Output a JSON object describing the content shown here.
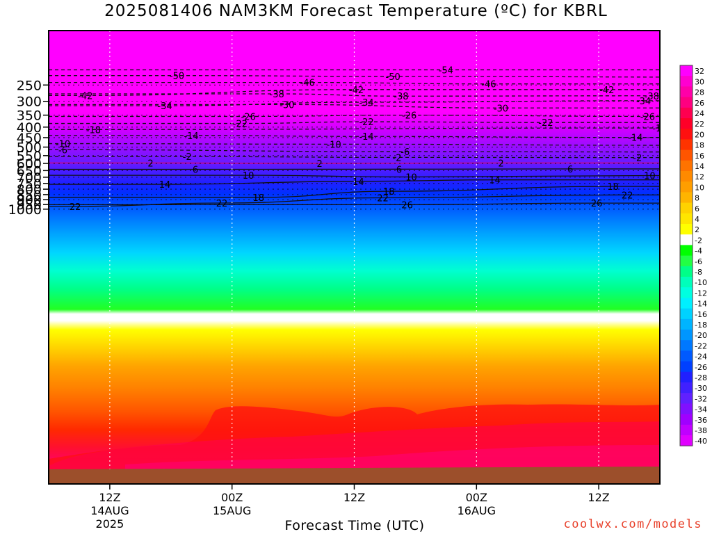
{
  "title": "2025081406 NAM3KM Forecast Temperature (ºC) for KBRL",
  "credit": "coolwx.com/models",
  "chart_data": {
    "type": "heatmap",
    "title": "2025081406 NAM3KM Forecast Temperature (ºC) for KBRL",
    "xlabel": "Forecast Time (UTC)",
    "ylabel": "",
    "x_range_hours": [
      6,
      90
    ],
    "x_ticks": [
      {
        "hour": 12,
        "lines": [
          "12Z",
          "14AUG",
          "2025"
        ]
      },
      {
        "hour": 24,
        "lines": [
          "00Z",
          "15AUG"
        ]
      },
      {
        "hour": 36,
        "lines": [
          "12Z"
        ]
      },
      {
        "hour": 48,
        "lines": [
          "00Z",
          "16AUG"
        ]
      },
      {
        "hour": 60,
        "lines": [
          "12Z"
        ]
      }
    ],
    "y_axis": {
      "reversed": true,
      "range": [
        200,
        1000
      ],
      "unit": "hPa"
    },
    "y_ticks": [
      "250",
      "300",
      "350",
      "400",
      "450",
      "500",
      "550",
      "600",
      "650",
      "700",
      "750",
      "800",
      "850",
      "900",
      "950",
      "1000"
    ],
    "colorbar": {
      "labels": [
        "32",
        "30",
        "28",
        "26",
        "24",
        "22",
        "20",
        "18",
        "16",
        "14",
        "12",
        "10",
        "8",
        "6",
        "4",
        "2",
        "-2",
        "-4",
        "-6",
        "-8",
        "-10",
        "-12",
        "-14",
        "-16",
        "-18",
        "-20",
        "-22",
        "-24",
        "-26",
        "-28",
        "-30",
        "-32",
        "-34",
        "-36",
        "-38",
        "-40"
      ],
      "colors": [
        "#ff00ff",
        "#ff00d0",
        "#ff00a8",
        "#ff0080",
        "#ff0050",
        "#ff0028",
        "#ff1010",
        "#ff3300",
        "#ff5500",
        "#ff7300",
        "#ff8a00",
        "#ff9e00",
        "#ffb400",
        "#ffd200",
        "#ffe600",
        "#ffff00",
        "#ffffff",
        "#00ff00",
        "#22ff44",
        "#00ff88",
        "#00ffbb",
        "#00ffe0",
        "#00f0ff",
        "#00d2ff",
        "#00b4ff",
        "#0096ff",
        "#0078ff",
        "#005aff",
        "#0040ff",
        "#2020ff",
        "#4020ff",
        "#6020ff",
        "#8010ff",
        "#a000ff",
        "#c000ff",
        "#e000ff"
      ]
    },
    "isotherm_labels": [
      {
        "v": "-54",
        "h": 45.0,
        "p": 211
      },
      {
        "v": "-50",
        "h": 18.6,
        "p": 225
      },
      {
        "v": "-50",
        "h": 39.8,
        "p": 227
      },
      {
        "v": "-50",
        "h": 73.0,
        "p": 229
      },
      {
        "v": "-46",
        "h": 31.4,
        "p": 243
      },
      {
        "v": "-46",
        "h": 49.2,
        "p": 247
      },
      {
        "v": "-42",
        "h": 9.6,
        "p": 281
      },
      {
        "v": "-42",
        "h": 36.2,
        "p": 263
      },
      {
        "v": "-42",
        "h": 60.8,
        "p": 263
      },
      {
        "v": "-38",
        "h": 28.4,
        "p": 276
      },
      {
        "v": "-38",
        "h": 40.6,
        "p": 283
      },
      {
        "v": "-38",
        "h": 65.2,
        "p": 282
      },
      {
        "v": "-34",
        "h": 17.4,
        "p": 315
      },
      {
        "v": "-34",
        "h": 37.2,
        "p": 303
      },
      {
        "v": "-34",
        "h": 64.4,
        "p": 298
      },
      {
        "v": "-30",
        "h": 29.4,
        "p": 311
      },
      {
        "v": "-30",
        "h": 50.4,
        "p": 323
      },
      {
        "v": "-26",
        "h": 25.6,
        "p": 355
      },
      {
        "v": "-26",
        "h": 41.4,
        "p": 350
      },
      {
        "v": "-26",
        "h": 64.8,
        "p": 355
      },
      {
        "v": "-22",
        "h": 24.8,
        "p": 384
      },
      {
        "v": "-22",
        "h": 37.2,
        "p": 377
      },
      {
        "v": "-22",
        "h": 54.8,
        "p": 380
      },
      {
        "v": "-18",
        "h": 10.4,
        "p": 411
      },
      {
        "v": "-18",
        "h": 66.0,
        "p": 404
      },
      {
        "v": "-14",
        "h": 20.0,
        "p": 439
      },
      {
        "v": "-14",
        "h": 37.2,
        "p": 444
      },
      {
        "v": "-14",
        "h": 63.6,
        "p": 449
      },
      {
        "v": "-10",
        "h": 7.4,
        "p": 481
      },
      {
        "v": "-10",
        "h": 34.0,
        "p": 484
      },
      {
        "v": "-10",
        "h": 67.0,
        "p": 490
      },
      {
        "v": "-6",
        "h": 7.4,
        "p": 515
      },
      {
        "v": "-6",
        "h": 41.0,
        "p": 526
      },
      {
        "v": "-6",
        "h": 67.0,
        "p": 528
      },
      {
        "v": "-2",
        "h": 19.6,
        "p": 556
      },
      {
        "v": "-2",
        "h": 40.2,
        "p": 561
      },
      {
        "v": "-2",
        "h": 63.8,
        "p": 562
      },
      {
        "v": "2",
        "h": 16.0,
        "p": 597
      },
      {
        "v": "2",
        "h": 32.6,
        "p": 599
      },
      {
        "v": "2",
        "h": 50.4,
        "p": 597
      },
      {
        "v": "6",
        "h": 20.4,
        "p": 641
      },
      {
        "v": "6",
        "h": 40.4,
        "p": 640
      },
      {
        "v": "6",
        "h": 57.2,
        "p": 638
      },
      {
        "v": "10",
        "h": 25.6,
        "p": 685
      },
      {
        "v": "10",
        "h": 41.6,
        "p": 698
      },
      {
        "v": "10",
        "h": 65.0,
        "p": 687
      },
      {
        "v": "14",
        "h": 17.4,
        "p": 758
      },
      {
        "v": "14",
        "h": 36.4,
        "p": 733
      },
      {
        "v": "14",
        "h": 49.8,
        "p": 721
      },
      {
        "v": "18",
        "h": 26.6,
        "p": 877
      },
      {
        "v": "18",
        "h": 39.4,
        "p": 819
      },
      {
        "v": "18",
        "h": 61.4,
        "p": 776
      },
      {
        "v": "22",
        "h": 8.6,
        "p": 970
      },
      {
        "v": "22",
        "h": 23.0,
        "p": 934
      },
      {
        "v": "22",
        "h": 38.8,
        "p": 881
      },
      {
        "v": "22",
        "h": 62.8,
        "p": 853
      },
      {
        "v": "26",
        "h": 41.2,
        "p": 951
      },
      {
        "v": "26",
        "h": 59.8,
        "p": 935
      }
    ]
  }
}
